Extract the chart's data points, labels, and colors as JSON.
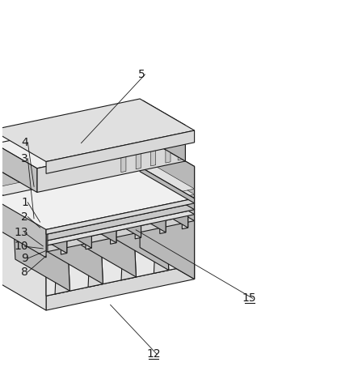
{
  "bg_color": "#ffffff",
  "line_color": "#1a1a1a",
  "lw": 0.8,
  "tlw": 0.4,
  "fig_w": 4.22,
  "fig_h": 4.79,
  "dpi": 100,
  "label_fs": 10,
  "colors": {
    "top_face": "#f0f0f0",
    "front_face": "#d8d8d8",
    "right_face": "#b8b8b8",
    "inner": "#e8e8e8",
    "dark": "#a0a0a0",
    "white": "#ffffff",
    "very_light": "#f8f8f8"
  }
}
